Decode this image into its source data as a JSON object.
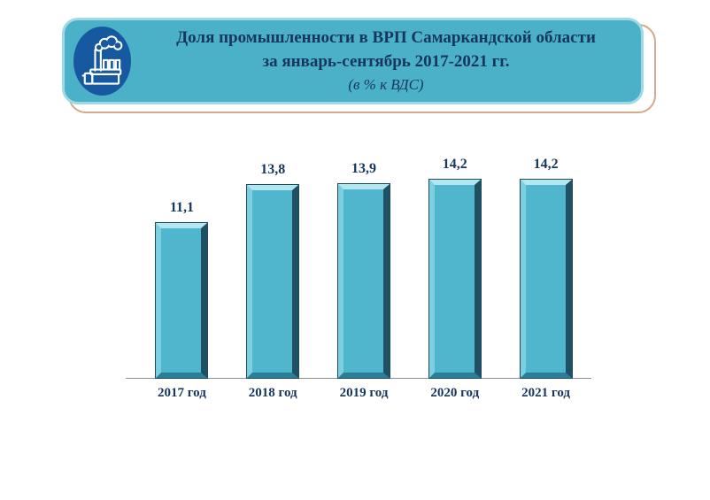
{
  "header": {
    "title_line1": "Доля промышленности в ВРП Самаркандской области",
    "title_line2": "за январь-сентябрь 2017-2021 гг.",
    "title_line3": "(в % к ВДС)",
    "icon": "factory-icon",
    "colors": {
      "banner_fill": "#4bb1c8",
      "banner_inner_border": "#9fd9e4",
      "banner_shadow_border": "#d4a98c",
      "icon_circle_fill": "#1659a0",
      "title_text": "#17365d"
    }
  },
  "chart_data": {
    "type": "bar",
    "title": "Доля промышленности в ВРП Самаркандской области за январь-сентябрь 2017-2021 гг.",
    "subtitle": "(в % к ВДС)",
    "categories": [
      "2017 год",
      "2018 год",
      "2019 год",
      "2020 год",
      "2021 год"
    ],
    "values": [
      11.1,
      13.8,
      13.9,
      14.2,
      14.2
    ],
    "value_labels": [
      "11,1",
      "13,8",
      "13,9",
      "14,2",
      "14,2"
    ],
    "unit": "% к ВДС",
    "xlabel": "",
    "ylabel": "",
    "ylim": [
      0,
      14.2
    ],
    "grid": false,
    "legend": "none",
    "data_labels": "above bars",
    "bar_fill_color": "#4fb6cd",
    "bar_bevel_light_color": "#b2e7f1",
    "bar_bevel_dark_color": "#1f5063",
    "label_text_color": "#17365d",
    "axis_line_color": "#8f8f8f"
  }
}
